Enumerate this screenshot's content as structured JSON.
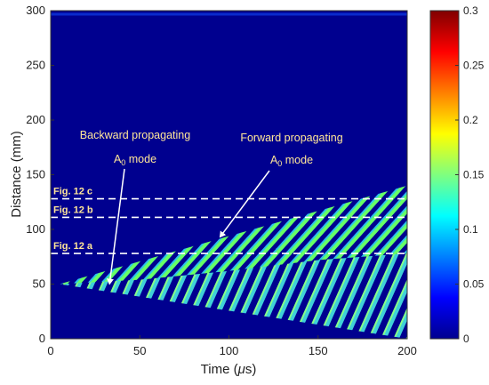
{
  "chart_data": {
    "type": "heatmap",
    "title": "",
    "xlabel_prefix": "Time (",
    "xlabel_greek": "μ",
    "xlabel_suffix": "s)",
    "ylabel": "Distance (mm)",
    "xlim": [
      0,
      200
    ],
    "ylim": [
      0,
      300
    ],
    "x_ticks": [
      0,
      50,
      100,
      150,
      200
    ],
    "y_ticks": [
      0,
      50,
      100,
      150,
      200,
      250,
      300
    ],
    "colorbar": {
      "range": [
        0,
        0.3
      ],
      "ticks": [
        0,
        0.05,
        0.1,
        0.15,
        0.2,
        0.25,
        0.3
      ],
      "tick_labels": [
        "0",
        "0.05",
        "0.1",
        "0.15",
        "0.2",
        "0.25",
        "0.3"
      ],
      "colormap": "jet"
    },
    "wave_source": {
      "time": 5,
      "distance": 50
    },
    "forward_mode_front": {
      "from": [
        5,
        50
      ],
      "to": [
        200,
        140
      ]
    },
    "backward_mode_front": {
      "from": [
        5,
        50
      ],
      "to": [
        200,
        22
      ]
    },
    "reference_lines": [
      {
        "label": "Fig. 12 c",
        "distance": 128
      },
      {
        "label": "Fig. 12 b",
        "distance": 111
      },
      {
        "label": "Fig. 12 a",
        "distance": 78
      }
    ],
    "annotations": [
      {
        "line1": "Backward propagating",
        "line2_main": "A",
        "line2_sub": "0",
        "line2_tail": " mode",
        "arrow_to": [
          33,
          50
        ]
      },
      {
        "line1": "Forward propagating",
        "line2_main": "A",
        "line2_sub": "0",
        "line2_tail": " mode",
        "arrow_to": [
          95,
          93
        ]
      }
    ]
  },
  "colors": {
    "background": "#00008F",
    "stripe_high": "#66ff66",
    "stripe_mid": "#2ec4e8",
    "annotation_text": "#ffe699",
    "dashed_line": "#ffffff"
  }
}
